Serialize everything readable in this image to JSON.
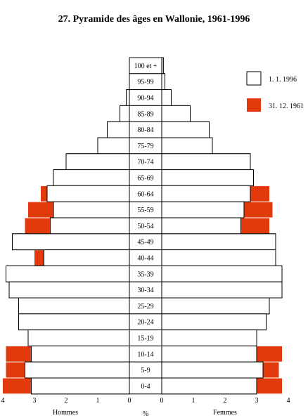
{
  "chart_data": {
    "type": "bar",
    "title": "27.  Pyramide des âges en Wallonie, 1961-1996",
    "categories": [
      "100 et +",
      "95-99",
      "90-94",
      "85-89",
      "80-84",
      "75-79",
      "70-74",
      "65-69",
      "60-64",
      "55-59",
      "50-54",
      "45-49",
      "40-44",
      "35-39",
      "30-34",
      "25-29",
      "20-24",
      "15-19",
      "10-14",
      "5-9",
      "0-4"
    ],
    "series": [
      {
        "name": "1. 1. 1996",
        "hommes": [
          0.0,
          0.0,
          0.1,
          0.3,
          0.7,
          1.0,
          2.0,
          2.4,
          2.6,
          2.4,
          2.5,
          3.7,
          2.7,
          3.9,
          3.8,
          3.5,
          3.5,
          3.2,
          3.1,
          3.3,
          3.1
        ],
        "femmes": [
          0.05,
          0.1,
          0.3,
          0.9,
          1.5,
          1.6,
          2.8,
          2.9,
          2.8,
          2.6,
          2.5,
          3.6,
          3.6,
          3.8,
          3.8,
          3.4,
          3.3,
          3.0,
          3.0,
          3.2,
          3.0
        ]
      },
      {
        "name": "31. 12. 1961",
        "hommes": [
          0.0,
          0.0,
          0.0,
          0.2,
          0.6,
          1.0,
          1.5,
          2.1,
          2.8,
          3.2,
          3.3,
          3.0,
          3.0,
          3.8,
          3.6,
          2.9,
          2.6,
          3.0,
          3.9,
          3.9,
          4.0
        ],
        "femmes": [
          0.0,
          0.0,
          0.1,
          0.4,
          0.9,
          1.6,
          2.2,
          2.8,
          3.4,
          3.5,
          3.4,
          3.0,
          3.0,
          3.7,
          3.5,
          3.0,
          2.6,
          2.9,
          3.8,
          3.7,
          3.8
        ]
      }
    ],
    "x_ticks": [
      "4",
      "3",
      "2",
      "1",
      "0",
      "0",
      "1",
      "2",
      "3",
      "4"
    ],
    "xlim": [
      0,
      4
    ],
    "xlabel_left": "Hommes",
    "xlabel_center": "%",
    "xlabel_right": "Femmes",
    "colors": {
      "1961": "#e23a0c",
      "1996": "#ffffff",
      "outline": "#000000"
    }
  }
}
